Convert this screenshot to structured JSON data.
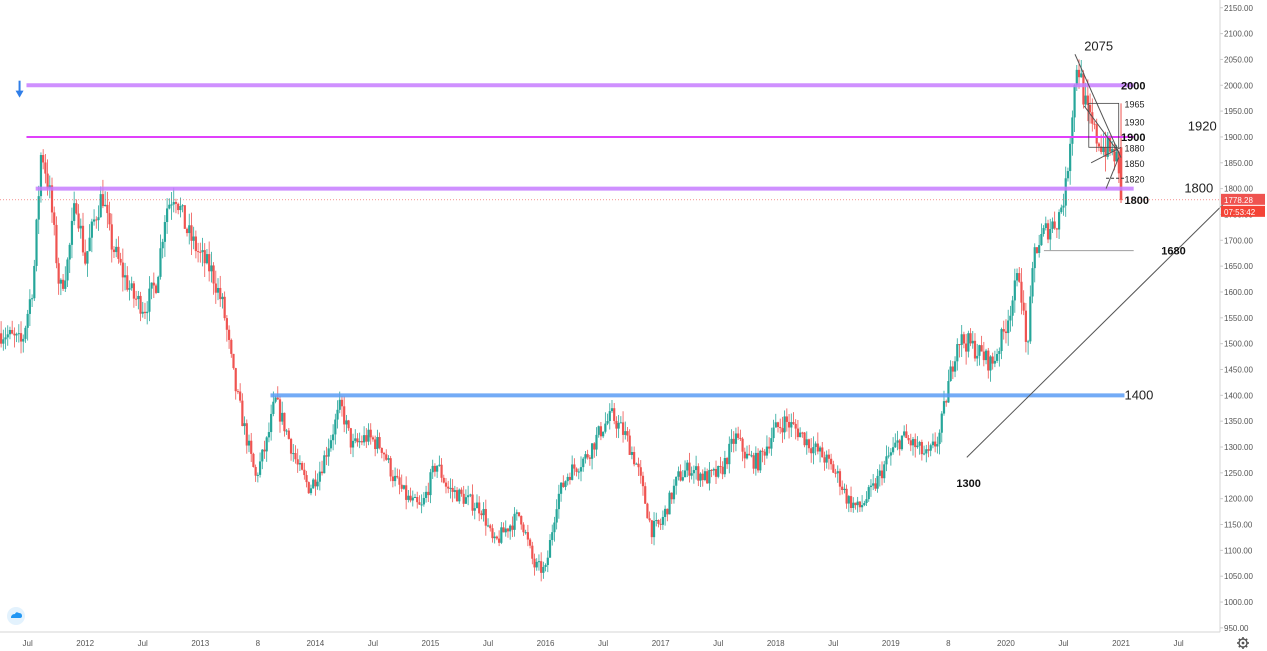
{
  "chart_data": {
    "type": "candlestick",
    "xlabel": "",
    "ylabel": "",
    "ylim": [
      942,
      2165
    ],
    "grid": false,
    "y_ticks": [
      950,
      1000,
      1050,
      1100,
      1150,
      1200,
      1250,
      1300,
      1350,
      1400,
      1450,
      1500,
      1550,
      1600,
      1650,
      1700,
      1750,
      1800,
      1850,
      1900,
      1950,
      2000,
      2050,
      2100,
      2150
    ],
    "x_ticks": [
      "Jul",
      "2012",
      "Jul",
      "2013",
      "8",
      "2014",
      "Jul",
      "2015",
      "Jul",
      "2016",
      "Jul",
      "2017",
      "Jul",
      "2018",
      "Jul",
      "2019",
      "8",
      "2020",
      "Jul",
      "2021",
      "Jul"
    ],
    "x_tick_times": [
      2011.5,
      2012.0,
      2012.5,
      2013.0,
      2013.5,
      2014.0,
      2014.5,
      2015.0,
      2015.5,
      2016.0,
      2016.5,
      2017.0,
      2017.5,
      2018.0,
      2018.5,
      2019.0,
      2019.5,
      2020.0,
      2020.5,
      2021.0,
      2021.5
    ],
    "xlim": [
      2011.26,
      2021.86
    ],
    "colors": {
      "up": "#26a69a",
      "down": "#ef5350",
      "purple": "#c77dff",
      "magenta": "#e040fb",
      "blue": "#5b9cf5",
      "price": "#ef5350"
    },
    "price_path": [
      [
        2011.3,
        1520
      ],
      [
        2011.45,
        1500
      ],
      [
        2011.55,
        1620
      ],
      [
        2011.62,
        1880
      ],
      [
        2011.7,
        1780
      ],
      [
        2011.78,
        1600
      ],
      [
        2011.85,
        1660
      ],
      [
        2011.92,
        1780
      ],
      [
        2012.0,
        1660
      ],
      [
        2012.08,
        1740
      ],
      [
        2012.15,
        1790
      ],
      [
        2012.22,
        1700
      ],
      [
        2012.32,
        1640
      ],
      [
        2012.42,
        1590
      ],
      [
        2012.52,
        1570
      ],
      [
        2012.62,
        1620
      ],
      [
        2012.7,
        1760
      ],
      [
        2012.78,
        1795
      ],
      [
        2012.88,
        1720
      ],
      [
        2013.0,
        1670
      ],
      [
        2013.1,
        1640
      ],
      [
        2013.2,
        1570
      ],
      [
        2013.3,
        1420
      ],
      [
        2013.38,
        1340
      ],
      [
        2013.48,
        1240
      ],
      [
        2013.58,
        1310
      ],
      [
        2013.65,
        1390
      ],
      [
        2013.75,
        1330
      ],
      [
        2013.85,
        1260
      ],
      [
        2013.95,
        1220
      ],
      [
        2014.05,
        1260
      ],
      [
        2014.15,
        1330
      ],
      [
        2014.22,
        1380
      ],
      [
        2014.32,
        1300
      ],
      [
        2014.45,
        1320
      ],
      [
        2014.58,
        1300
      ],
      [
        2014.68,
        1240
      ],
      [
        2014.8,
        1200
      ],
      [
        2014.92,
        1180
      ],
      [
        2015.05,
        1270
      ],
      [
        2015.15,
        1220
      ],
      [
        2015.3,
        1200
      ],
      [
        2015.45,
        1180
      ],
      [
        2015.55,
        1110
      ],
      [
        2015.65,
        1140
      ],
      [
        2015.78,
        1170
      ],
      [
        2015.9,
        1070
      ],
      [
        2016.0,
        1060
      ],
      [
        2016.1,
        1200
      ],
      [
        2016.2,
        1250
      ],
      [
        2016.35,
        1280
      ],
      [
        2016.5,
        1340
      ],
      [
        2016.58,
        1360
      ],
      [
        2016.7,
        1320
      ],
      [
        2016.8,
        1260
      ],
      [
        2016.92,
        1140
      ],
      [
        2017.0,
        1150
      ],
      [
        2017.15,
        1240
      ],
      [
        2017.25,
        1260
      ],
      [
        2017.4,
        1240
      ],
      [
        2017.52,
        1250
      ],
      [
        2017.65,
        1320
      ],
      [
        2017.75,
        1280
      ],
      [
        2017.85,
        1270
      ],
      [
        2017.98,
        1330
      ],
      [
        2018.08,
        1350
      ],
      [
        2018.2,
        1330
      ],
      [
        2018.32,
        1300
      ],
      [
        2018.42,
        1280
      ],
      [
        2018.55,
        1240
      ],
      [
        2018.62,
        1200
      ],
      [
        2018.72,
        1180
      ],
      [
        2018.85,
        1220
      ],
      [
        2018.98,
        1280
      ],
      [
        2019.1,
        1320
      ],
      [
        2019.22,
        1300
      ],
      [
        2019.32,
        1280
      ],
      [
        2019.42,
        1320
      ],
      [
        2019.5,
        1420
      ],
      [
        2019.58,
        1510
      ],
      [
        2019.68,
        1500
      ],
      [
        2019.78,
        1480
      ],
      [
        2019.88,
        1460
      ],
      [
        2019.98,
        1520
      ],
      [
        2020.05,
        1580
      ],
      [
        2020.12,
        1640
      ],
      [
        2020.18,
        1480
      ],
      [
        2020.25,
        1680
      ],
      [
        2020.35,
        1720
      ],
      [
        2020.45,
        1740
      ],
      [
        2020.52,
        1800
      ],
      [
        2020.58,
        1960
      ],
      [
        2020.62,
        2050
      ],
      [
        2020.7,
        1950
      ],
      [
        2020.78,
        1900
      ],
      [
        2020.85,
        1880
      ],
      [
        2020.92,
        1870
      ],
      [
        2020.96,
        1860
      ],
      [
        2021.0,
        1778
      ]
    ],
    "horizontal_levels": [
      {
        "value": 2000,
        "t0": 2011.49,
        "t1": 2021.11,
        "color": "#c77dff",
        "width": 4
      },
      {
        "value": 1900,
        "t0": 2011.49,
        "t1": 2021.11,
        "color": "#e040fb",
        "width": 2
      },
      {
        "value": 1800,
        "t0": 2011.57,
        "t1": 2021.11,
        "color": "#c77dff",
        "width": 4
      },
      {
        "value": 1400,
        "t0": 2013.61,
        "t1": 2021.03,
        "color": "#5b9cf5",
        "width": 4
      },
      {
        "value": 1680,
        "t0": 2020.33,
        "t1": 2021.11,
        "color": "#9e9e9e",
        "width": 1
      },
      {
        "value": 1820,
        "t0": 2020.87,
        "t1": 2021.03,
        "color": "#333333",
        "width": 1,
        "dash": true
      }
    ],
    "trend_lines": [
      {
        "from": [
          2019.66,
          1280
        ],
        "to": [
          2021.89,
          1770
        ]
      },
      {
        "from": [
          2020.87,
          1800
        ],
        "to": [
          2020.98,
          1860
        ]
      },
      {
        "from": [
          2020.6,
          2060
        ],
        "to": [
          2021.0,
          1860
        ]
      },
      {
        "from": [
          2020.68,
          1960
        ],
        "to": [
          2020.98,
          1870
        ]
      },
      {
        "from": [
          2020.74,
          1850
        ],
        "to": [
          2021.0,
          1880
        ]
      }
    ],
    "annotations": [
      {
        "text": "2075",
        "t": 2020.68,
        "y": 2075,
        "style": "big"
      },
      {
        "text": "2000",
        "t": 2021.0,
        "y": 2000,
        "style": "bold"
      },
      {
        "text": "1965",
        "t": 2021.03,
        "y": 1965,
        "style": "small"
      },
      {
        "text": "1930",
        "t": 2021.03,
        "y": 1930,
        "style": "small"
      },
      {
        "text": "1920",
        "t": 2021.58,
        "y": 1920,
        "style": "big"
      },
      {
        "text": "1900",
        "t": 2021.0,
        "y": 1900,
        "style": "bold"
      },
      {
        "text": "1880",
        "t": 2021.03,
        "y": 1880,
        "style": "small"
      },
      {
        "text": "1850",
        "t": 2021.03,
        "y": 1850,
        "style": "small"
      },
      {
        "text": "1820",
        "t": 2021.03,
        "y": 1820,
        "style": "small"
      },
      {
        "text": "1800",
        "t": 2021.55,
        "y": 1800,
        "style": "big"
      },
      {
        "text": "1800",
        "t": 2021.03,
        "y": 1778,
        "style": "bold"
      },
      {
        "text": "1680",
        "t": 2021.35,
        "y": 1680,
        "style": "bold"
      },
      {
        "text": "1400",
        "t": 2021.03,
        "y": 1400,
        "style": "big"
      },
      {
        "text": "1300",
        "t": 2019.57,
        "y": 1230,
        "style": "bold"
      }
    ],
    "current_price": {
      "value": 1778.28,
      "label": "1778.28",
      "timer": "07:53:42",
      "t": 2021.0
    },
    "arrow_marker": {
      "t": 2011.43,
      "y": 2005
    }
  }
}
